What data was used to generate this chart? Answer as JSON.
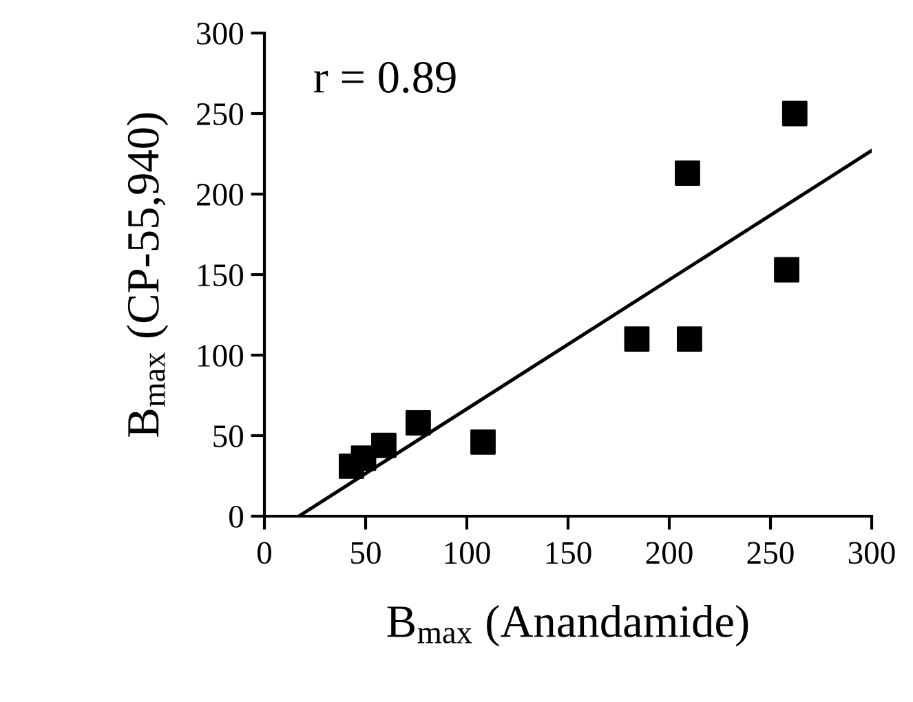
{
  "chart_data": {
    "type": "scatter",
    "xlabel": "B$_{max}$ (Anandamide)",
    "ylabel": "B$_{max}$ (CP-55,940)",
    "annotations": [
      "r = 0.89"
    ],
    "series": [
      {
        "color": "#000000",
        "marker": "square",
        "x": [
          43,
          49,
          59,
          76,
          108,
          184,
          210,
          209,
          258,
          262
        ],
        "values": [
          31,
          36,
          44,
          58,
          46,
          110,
          110,
          213,
          153,
          250
        ]
      },
      {
        "type": "line",
        "color": "#000000",
        "marker": "none",
        "x": [
          17,
          300
        ],
        "values": [
          0,
          227
        ]
      }
    ],
    "xlim": [
      0,
      300
    ],
    "ylim": [
      0,
      300
    ],
    "xticks": [
      0,
      50,
      100,
      150,
      200,
      250,
      300
    ],
    "yticks": [
      0,
      50,
      100,
      150,
      200,
      250,
      300
    ],
    "grid": false,
    "legend": false
  }
}
